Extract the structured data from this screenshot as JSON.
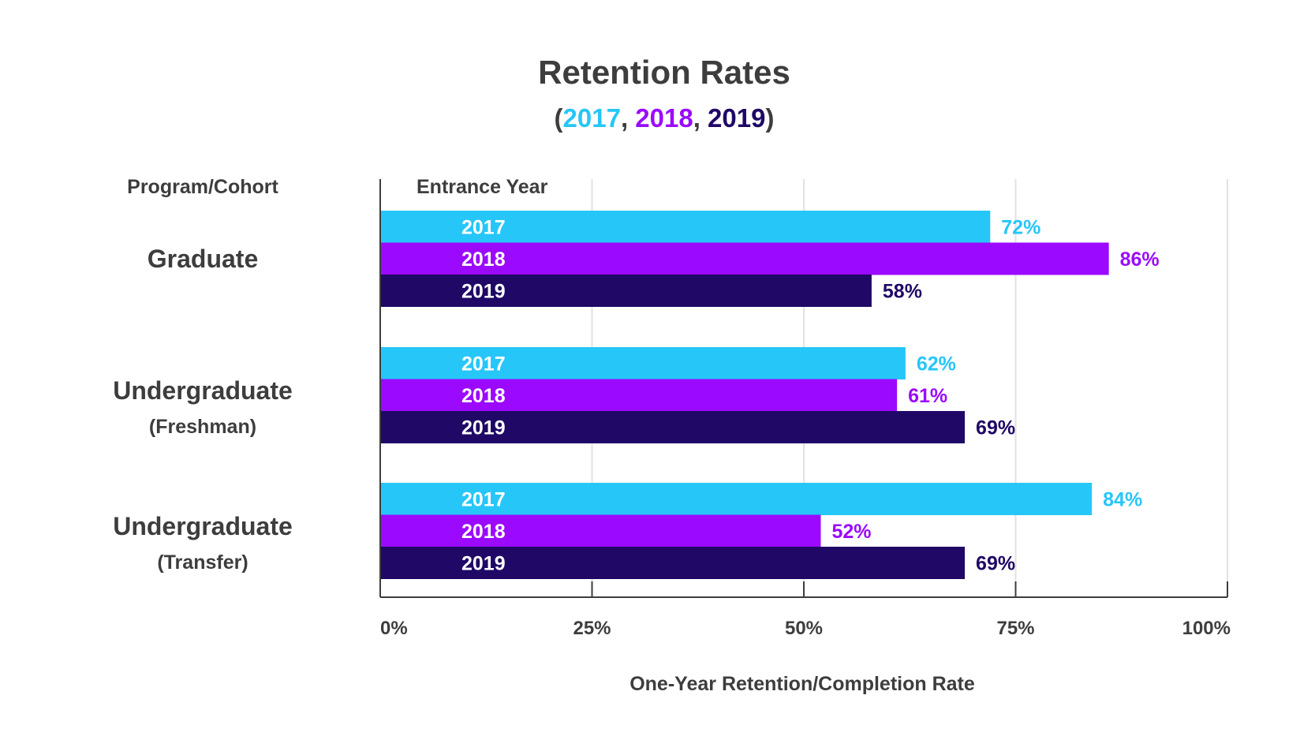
{
  "chart_data": {
    "type": "bar",
    "orientation": "horizontal",
    "title": "Retention Rates",
    "subtitle": {
      "open": "(",
      "parts": [
        {
          "text": "2017",
          "color": "#26c6f9"
        },
        {
          "text": ", ",
          "color": "#3d3d3d"
        },
        {
          "text": "2018",
          "color": "#9b0aff"
        },
        {
          "text": ", ",
          "color": "#3d3d3d"
        },
        {
          "text": "2019",
          "color": "#1f0866"
        }
      ],
      "close": ")"
    },
    "row_header": "Program/Cohort",
    "series_header": "Entrance Year",
    "xlabel": "One-Year Retention/Completion Rate",
    "xlim": [
      0,
      100
    ],
    "xticks": [
      "0%",
      "25%",
      "50%",
      "75%",
      "100%"
    ],
    "grid": true,
    "categories": [
      {
        "name": "Graduate",
        "sub": ""
      },
      {
        "name": "Undergraduate",
        "sub": "(Freshman)"
      },
      {
        "name": "Undergraduate",
        "sub": "(Transfer)"
      }
    ],
    "series": [
      {
        "name": "2017",
        "color": "#26c6f9",
        "values": [
          72,
          62,
          84
        ]
      },
      {
        "name": "2018",
        "color": "#9b0aff",
        "values": [
          86,
          61,
          52
        ]
      },
      {
        "name": "2019",
        "color": "#1f0866",
        "values": [
          58,
          69,
          69
        ]
      }
    ],
    "value_suffix": "%"
  }
}
